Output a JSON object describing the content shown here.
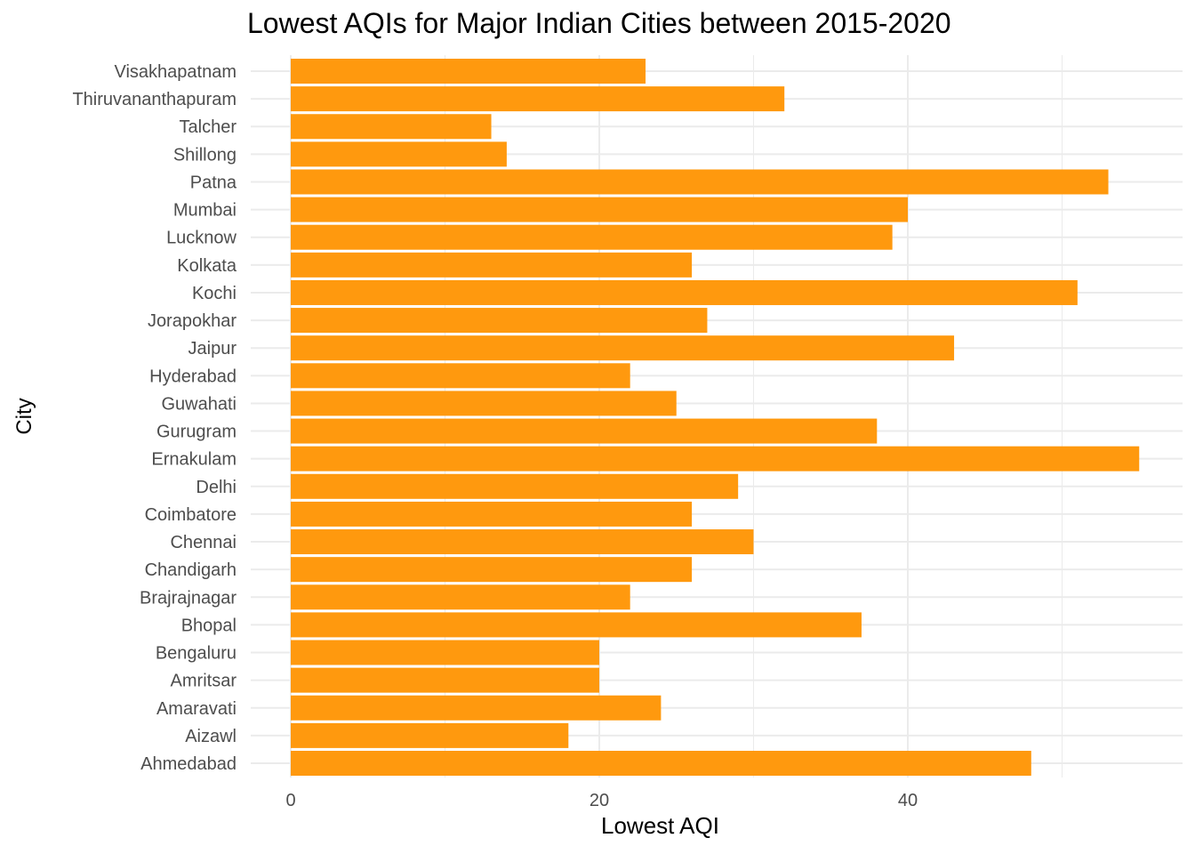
{
  "chart_data": {
    "type": "bar",
    "orientation": "horizontal",
    "title": "Lowest AQIs for Major Indian Cities between 2015-2020",
    "xlabel": "Lowest AQI",
    "ylabel": "City",
    "xlim": [
      0,
      57
    ],
    "x_ticks": [
      0,
      20,
      40
    ],
    "grid": true,
    "bar_color": "#ff990e",
    "categories": [
      "Ahmedabad",
      "Aizawl",
      "Amaravati",
      "Amritsar",
      "Bengaluru",
      "Bhopal",
      "Brajrajnagar",
      "Chandigarh",
      "Chennai",
      "Coimbatore",
      "Delhi",
      "Ernakulam",
      "Gurugram",
      "Guwahati",
      "Hyderabad",
      "Jaipur",
      "Jorapokhar",
      "Kochi",
      "Kolkata",
      "Lucknow",
      "Mumbai",
      "Patna",
      "Shillong",
      "Talcher",
      "Thiruvananthapuram",
      "Visakhapatnam"
    ],
    "values": [
      48,
      18,
      24,
      20,
      20,
      37,
      22,
      26,
      30,
      26,
      29,
      55,
      38,
      25,
      22,
      43,
      27,
      51,
      26,
      39,
      40,
      53,
      14,
      13,
      32,
      23
    ]
  }
}
